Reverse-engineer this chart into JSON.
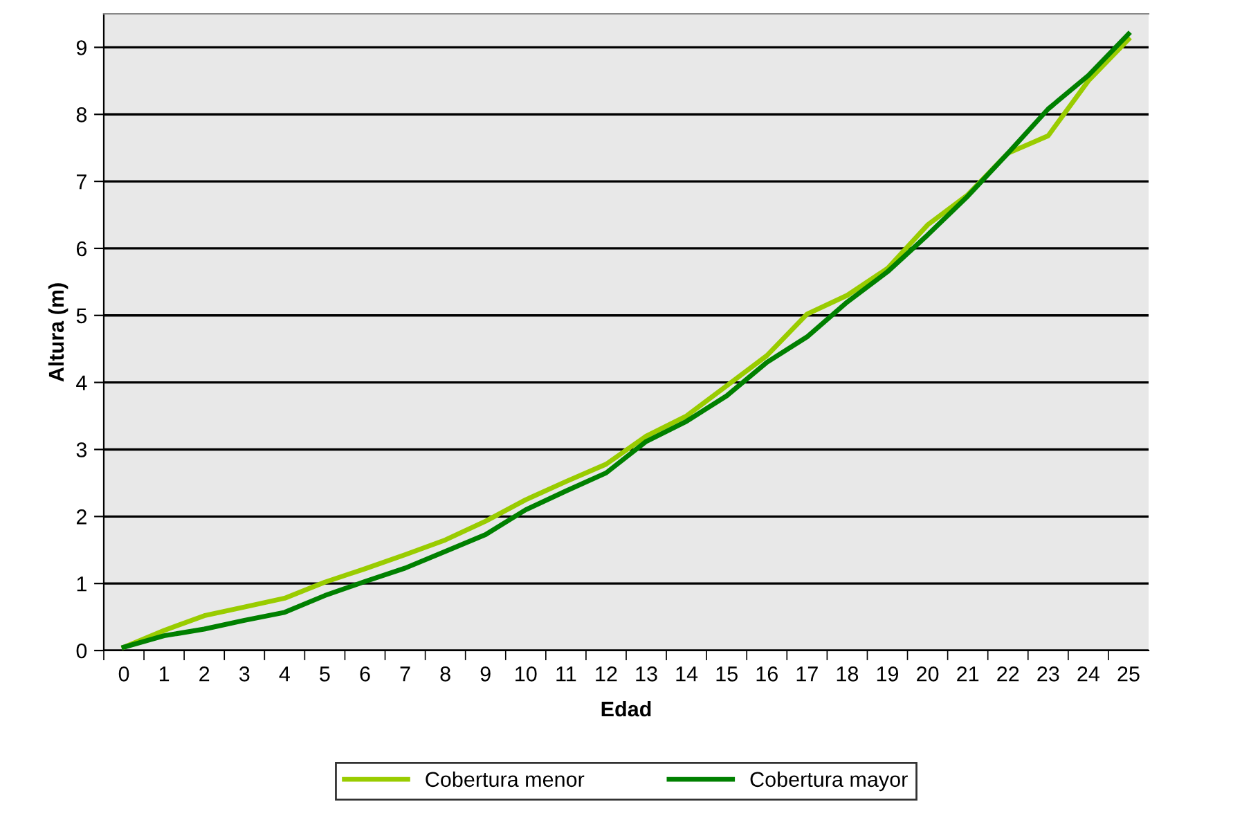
{
  "chart_data": {
    "type": "line",
    "xlabel": "Edad",
    "ylabel": "Altura (m)",
    "categories": [
      "0",
      "1",
      "2",
      "3",
      "4",
      "5",
      "6",
      "7",
      "8",
      "9",
      "10",
      "11",
      "12",
      "13",
      "14",
      "15",
      "16",
      "17",
      "18",
      "19",
      "20",
      "21",
      "22",
      "23",
      "24",
      "25"
    ],
    "series": [
      {
        "name": "Cobertura menor",
        "color": "#99cc00",
        "values": [
          0.05,
          0.3,
          0.52,
          0.65,
          0.78,
          1.02,
          1.22,
          1.43,
          1.65,
          1.93,
          2.25,
          2.52,
          2.78,
          3.2,
          3.5,
          3.95,
          4.4,
          5.02,
          5.3,
          5.7,
          6.35,
          6.8,
          7.42,
          7.68,
          8.5,
          9.12
        ]
      },
      {
        "name": "Cobertura mayor",
        "color": "#008000",
        "values": [
          0.05,
          0.22,
          0.32,
          0.45,
          0.57,
          0.82,
          1.03,
          1.23,
          1.48,
          1.73,
          2.1,
          2.38,
          2.65,
          3.12,
          3.42,
          3.8,
          4.3,
          4.68,
          5.2,
          5.65,
          6.2,
          6.78,
          7.42,
          8.08,
          8.58,
          9.2
        ]
      }
    ],
    "ylim": [
      0,
      9.5
    ],
    "yticks": [
      0,
      1,
      2,
      3,
      4,
      5,
      6,
      7,
      8,
      9
    ],
    "grid": "y",
    "legend": "bottom",
    "marker": "none",
    "line_style": "solid"
  }
}
